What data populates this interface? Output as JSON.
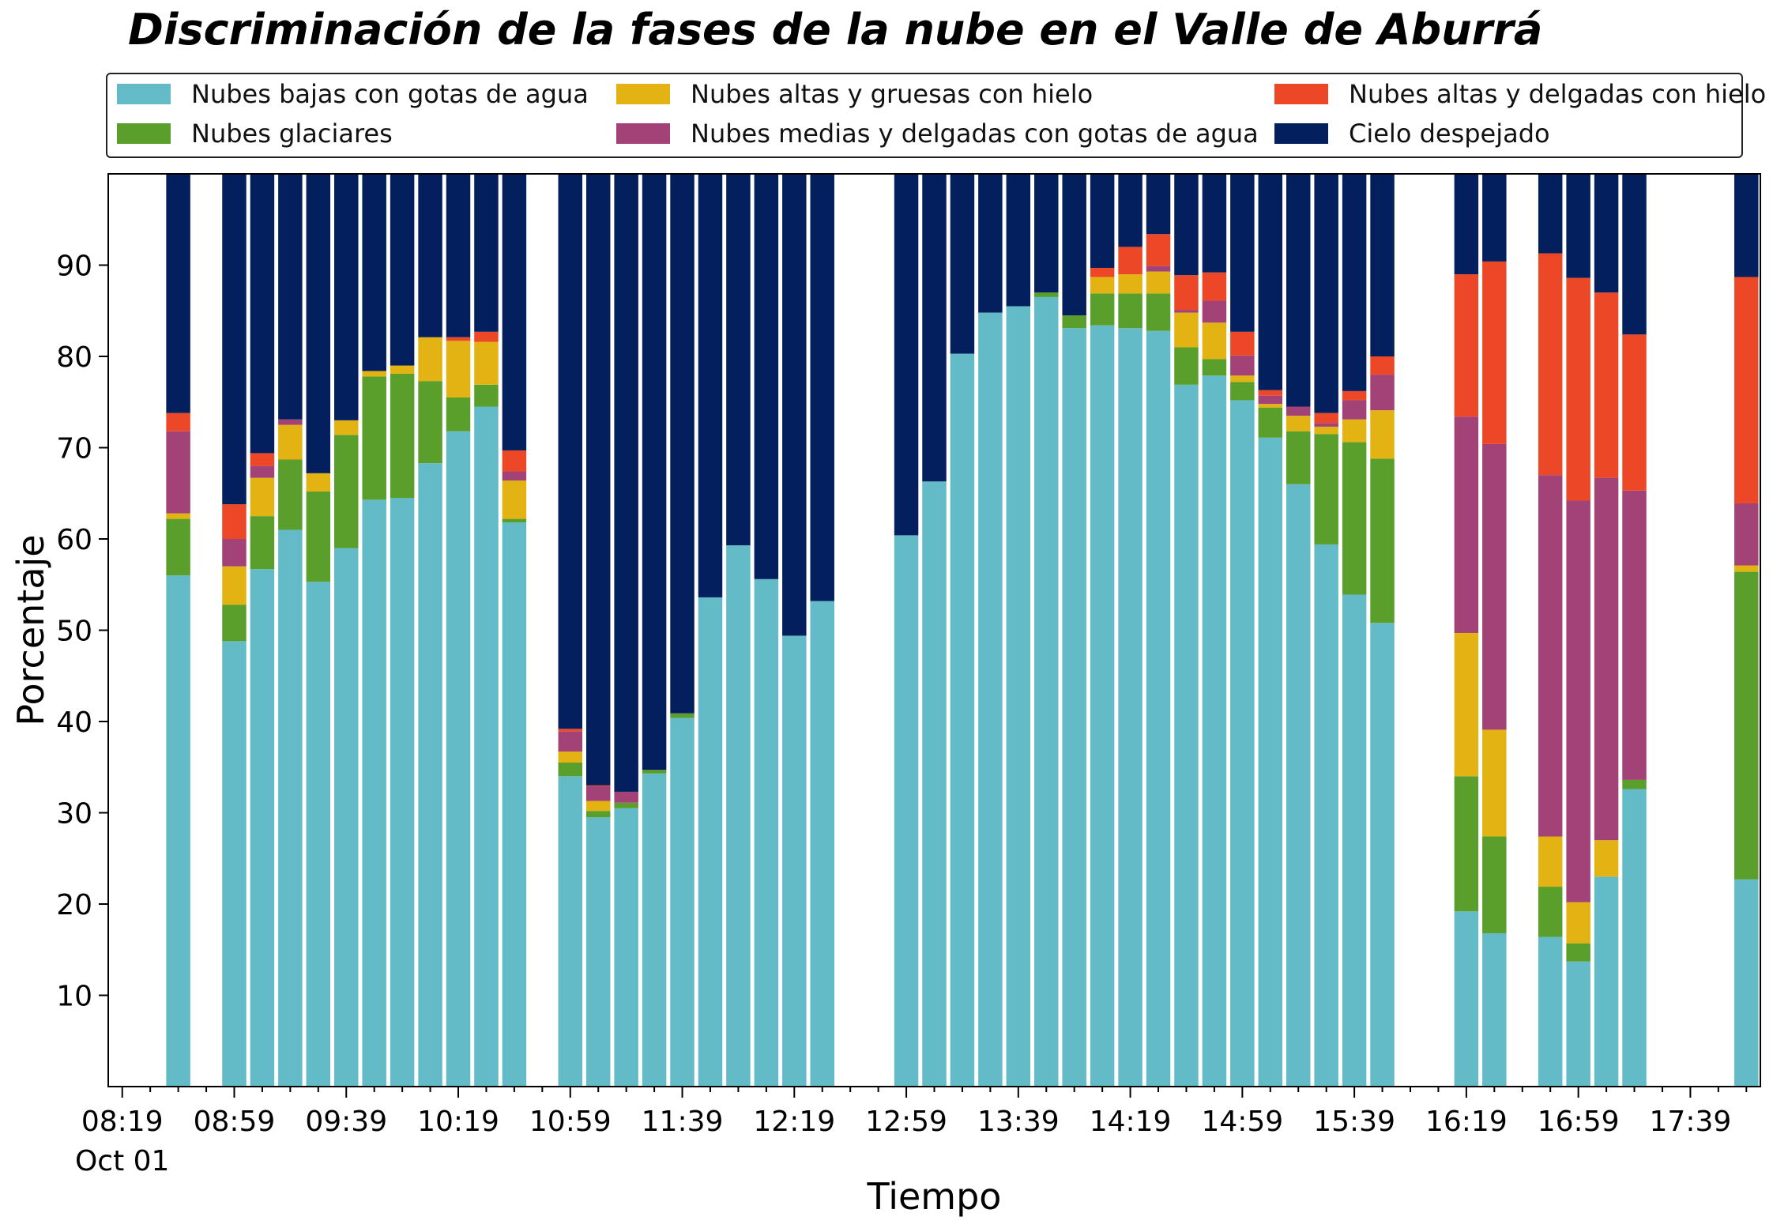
{
  "chart_data": {
    "type": "bar",
    "stacked": true,
    "title": "Discriminación de la fases de la nube en el Valle de Aburrá",
    "xlabel": "Tiempo",
    "ylabel": "Porcentaje",
    "ylim": [
      0,
      100
    ],
    "yticks": [
      10,
      20,
      30,
      40,
      50,
      60,
      70,
      80,
      90
    ],
    "xtick_labels": [
      "08:19",
      "08:59",
      "09:39",
      "10:19",
      "10:59",
      "11:39",
      "12:19",
      "12:59",
      "13:39",
      "14:19",
      "14:59",
      "15:39",
      "16:19",
      "16:59",
      "17:39"
    ],
    "x_sublabel": "Oct 01",
    "slots": 59,
    "legend_position": "top",
    "series": [
      {
        "name": "Nubes bajas con gotas de agua",
        "color": "#62bbc7"
      },
      {
        "name": "Nubes glaciares",
        "color": "#5a9e2b"
      },
      {
        "name": "Nubes altas y gruesas con hielo",
        "color": "#e2b313"
      },
      {
        "name": "Nubes medias y delgadas con gotas de agua",
        "color": "#a24276"
      },
      {
        "name": "Nubes altas y delgadas con hielo",
        "color": "#ec4828"
      },
      {
        "name": "Cielo despejado",
        "color": "#031f5d"
      }
    ],
    "bars": [
      {
        "slot": 2,
        "values": [
          56.0,
          6.2,
          0.6,
          9.0,
          2.0,
          26.2
        ]
      },
      {
        "slot": 4,
        "values": [
          48.8,
          4.0,
          4.2,
          3.0,
          3.8,
          36.2
        ]
      },
      {
        "slot": 5,
        "values": [
          56.7,
          5.8,
          4.2,
          1.3,
          1.4,
          30.6
        ]
      },
      {
        "slot": 6,
        "values": [
          61.0,
          7.7,
          3.8,
          0.6,
          0,
          26.9
        ]
      },
      {
        "slot": 7,
        "values": [
          55.3,
          9.9,
          2.0,
          0,
          0,
          32.8
        ]
      },
      {
        "slot": 8,
        "values": [
          59.0,
          12.4,
          1.6,
          0,
          0,
          27.0
        ]
      },
      {
        "slot": 9,
        "values": [
          64.3,
          13.5,
          0.6,
          0,
          0,
          21.6
        ]
      },
      {
        "slot": 10,
        "values": [
          64.5,
          13.6,
          0.9,
          0,
          0,
          21.0
        ]
      },
      {
        "slot": 11,
        "values": [
          68.3,
          9.0,
          4.8,
          0,
          0,
          17.9
        ]
      },
      {
        "slot": 12,
        "values": [
          71.8,
          3.7,
          6.2,
          0,
          0.4,
          17.9
        ]
      },
      {
        "slot": 13,
        "values": [
          74.5,
          2.4,
          4.7,
          0,
          1.1,
          17.3
        ]
      },
      {
        "slot": 14,
        "values": [
          61.8,
          0.4,
          4.2,
          1.0,
          2.3,
          30.3
        ]
      },
      {
        "slot": 16,
        "values": [
          34.0,
          1.5,
          1.2,
          2.2,
          0.3,
          60.8
        ]
      },
      {
        "slot": 17,
        "values": [
          29.5,
          0.7,
          1.1,
          1.6,
          0.1,
          67.0
        ]
      },
      {
        "slot": 18,
        "values": [
          30.5,
          0.6,
          0,
          1.2,
          0,
          67.7
        ]
      },
      {
        "slot": 19,
        "values": [
          34.3,
          0.4,
          0,
          0,
          0,
          65.3
        ]
      },
      {
        "slot": 20,
        "values": [
          40.4,
          0.5,
          0,
          0,
          0,
          59.1
        ]
      },
      {
        "slot": 21,
        "values": [
          53.6,
          0,
          0,
          0,
          0,
          46.4
        ]
      },
      {
        "slot": 22,
        "values": [
          59.3,
          0,
          0,
          0,
          0,
          40.7
        ]
      },
      {
        "slot": 23,
        "values": [
          55.6,
          0,
          0,
          0,
          0,
          44.4
        ]
      },
      {
        "slot": 24,
        "values": [
          49.4,
          0,
          0,
          0,
          0,
          50.6
        ]
      },
      {
        "slot": 25,
        "values": [
          53.2,
          0,
          0,
          0,
          0,
          46.8
        ]
      },
      {
        "slot": 28,
        "values": [
          60.4,
          0,
          0,
          0,
          0,
          39.6
        ]
      },
      {
        "slot": 29,
        "values": [
          66.3,
          0,
          0,
          0,
          0,
          33.7
        ]
      },
      {
        "slot": 30,
        "values": [
          80.3,
          0,
          0,
          0,
          0,
          19.7
        ]
      },
      {
        "slot": 31,
        "values": [
          84.8,
          0,
          0,
          0,
          0,
          15.2
        ]
      },
      {
        "slot": 32,
        "values": [
          85.5,
          0,
          0,
          0,
          0,
          14.5
        ]
      },
      {
        "slot": 33,
        "values": [
          86.5,
          0.5,
          0,
          0,
          0,
          13.0
        ]
      },
      {
        "slot": 34,
        "values": [
          83.1,
          1.4,
          0,
          0,
          0,
          15.5
        ]
      },
      {
        "slot": 35,
        "values": [
          83.4,
          3.5,
          1.8,
          0,
          1.0,
          10.3
        ]
      },
      {
        "slot": 36,
        "values": [
          83.1,
          3.8,
          2.1,
          0,
          3.0,
          8.0
        ]
      },
      {
        "slot": 37,
        "values": [
          82.8,
          4.1,
          2.4,
          0.6,
          3.5,
          6.6
        ]
      },
      {
        "slot": 38,
        "values": [
          76.9,
          4.1,
          3.8,
          0.3,
          3.8,
          11.1
        ]
      },
      {
        "slot": 39,
        "values": [
          77.9,
          1.8,
          4.0,
          2.4,
          3.1,
          10.8
        ]
      },
      {
        "slot": 40,
        "values": [
          75.2,
          2.0,
          0.7,
          2.2,
          2.6,
          17.3
        ]
      },
      {
        "slot": 41,
        "values": [
          71.1,
          3.3,
          0.4,
          0.9,
          0.6,
          23.7
        ]
      },
      {
        "slot": 42,
        "values": [
          66.0,
          5.8,
          1.7,
          1.0,
          0,
          25.5
        ]
      },
      {
        "slot": 43,
        "values": [
          59.4,
          12.1,
          0.8,
          0.4,
          1.1,
          26.2
        ]
      },
      {
        "slot": 44,
        "values": [
          53.9,
          16.7,
          2.5,
          2.1,
          1.0,
          23.8
        ]
      },
      {
        "slot": 45,
        "values": [
          50.8,
          18.0,
          5.3,
          3.9,
          2.0,
          20.0
        ]
      },
      {
        "slot": 48,
        "values": [
          19.2,
          14.8,
          15.7,
          23.7,
          15.6,
          11.0
        ]
      },
      {
        "slot": 49,
        "values": [
          16.8,
          10.6,
          11.7,
          31.3,
          20.0,
          9.6
        ]
      },
      {
        "slot": 51,
        "values": [
          16.4,
          5.5,
          5.5,
          39.6,
          24.3,
          8.7
        ]
      },
      {
        "slot": 52,
        "values": [
          13.7,
          2.0,
          4.5,
          44.0,
          24.4,
          11.4
        ]
      },
      {
        "slot": 53,
        "values": [
          23.0,
          0,
          4.0,
          39.7,
          20.3,
          13.0
        ]
      },
      {
        "slot": 54,
        "values": [
          32.6,
          1.0,
          0,
          31.7,
          17.1,
          17.6
        ]
      },
      {
        "slot": 58,
        "values": [
          22.7,
          33.7,
          0.7,
          6.8,
          24.8,
          11.3
        ]
      }
    ]
  }
}
